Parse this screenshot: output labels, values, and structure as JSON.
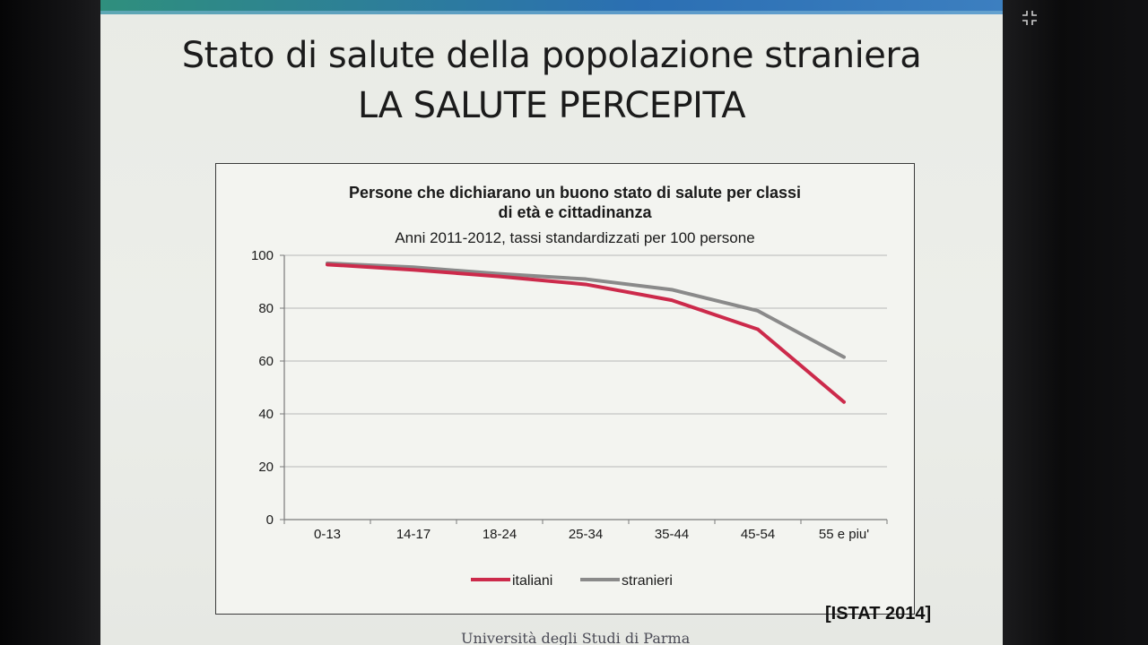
{
  "slide": {
    "title_line1": "Stato di salute della popolazione straniera",
    "title_line2": "LA SALUTE PERCEPITA",
    "source": "[ISTAT 2014]",
    "footer": "Università degli Studi di Parma"
  },
  "colors": {
    "italiani": "#cc2a4b",
    "stranieri": "#8a8a8a",
    "grid": "#b7b7b7",
    "axis": "#7a7a7a"
  },
  "chart_data": {
    "type": "line",
    "title": "Persone che dichiarano un buono stato di salute per classi di età e cittadinanza",
    "title_lines": [
      "Persone che dichiarano un buono stato di salute per classi",
      "di età e cittadinanza"
    ],
    "subtitle": "Anni 2011-2012, tassi standardizzati per 100 persone",
    "categories": [
      "0-13",
      "14-17",
      "18-24",
      "25-34",
      "35-44",
      "45-54",
      "55 e piu'"
    ],
    "series": [
      {
        "name": "italiani",
        "values": [
          96.5,
          94.5,
          92,
          89,
          83,
          72,
          44.5
        ]
      },
      {
        "name": "stranieri",
        "values": [
          97,
          95.5,
          93,
          91,
          87,
          79,
          61.5
        ]
      }
    ],
    "ylim": [
      0,
      100
    ],
    "yticks": [
      0,
      20,
      40,
      60,
      80,
      100
    ],
    "grid": true,
    "legend_position": "bottom"
  }
}
